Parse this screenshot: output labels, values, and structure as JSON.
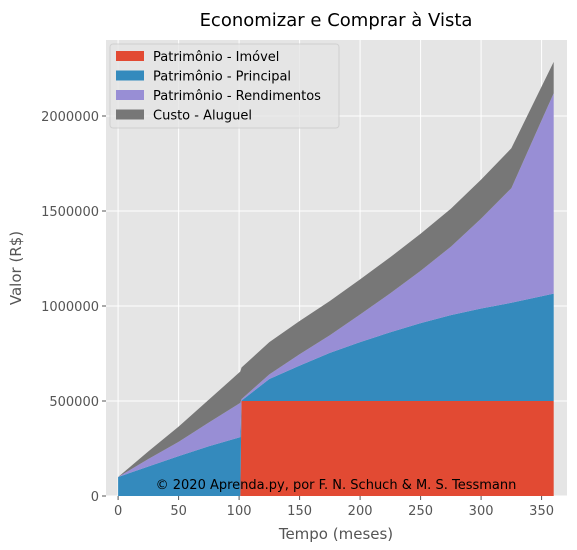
{
  "chart_data": {
    "type": "area",
    "stacked": true,
    "title": "Economizar e Comprar à Vista",
    "xlabel": "Tempo (meses)",
    "ylabel": "Valor (R$)",
    "xlim": [
      -10,
      371
    ],
    "ylim": [
      0,
      2400000
    ],
    "xticks": [
      0,
      50,
      100,
      150,
      200,
      250,
      300,
      350
    ],
    "yticks": [
      0,
      500000,
      1000000,
      1500000,
      2000000
    ],
    "ytick_labels": [
      "0",
      "500000",
      "1000000",
      "1500000",
      "2000000"
    ],
    "grid": true,
    "legend_position": "top-left",
    "annotation": "© 2020 Aprenda.py, por F. N. Schuch & M. S. Tessmann",
    "x": [
      0,
      25,
      50,
      75,
      101,
      102,
      125,
      150,
      175,
      200,
      225,
      250,
      275,
      300,
      325,
      360
    ],
    "series": [
      {
        "name": "Patrimônio - Imóvel",
        "color": "#E24A33",
        "values": [
          0,
          0,
          0,
          0,
          0,
          500000,
          500000,
          500000,
          500000,
          500000,
          500000,
          500000,
          500000,
          500000,
          500000,
          500000
        ]
      },
      {
        "name": "Patrimônio - Principal",
        "color": "#348ABD",
        "values": [
          100000,
          155000,
          210000,
          262000,
          310000,
          2000,
          116000,
          186000,
          253000,
          310000,
          362000,
          410000,
          452000,
          487000,
          517000,
          565000
        ]
      },
      {
        "name": "Patrimônio - Rendimentos",
        "color": "#988ED5",
        "values": [
          0,
          40000,
          75000,
          125000,
          180000,
          8000,
          24000,
          60000,
          93000,
          145000,
          205000,
          275000,
          360000,
          473000,
          603000,
          1055000
        ]
      },
      {
        "name": "Custo - Aluguel",
        "color": "#777777",
        "values": [
          0,
          40000,
          80000,
          120000,
          165000,
          166000,
          170000,
          175000,
          180000,
          185000,
          190000,
          195000,
          200000,
          205000,
          210000,
          165000
        ]
      }
    ]
  }
}
